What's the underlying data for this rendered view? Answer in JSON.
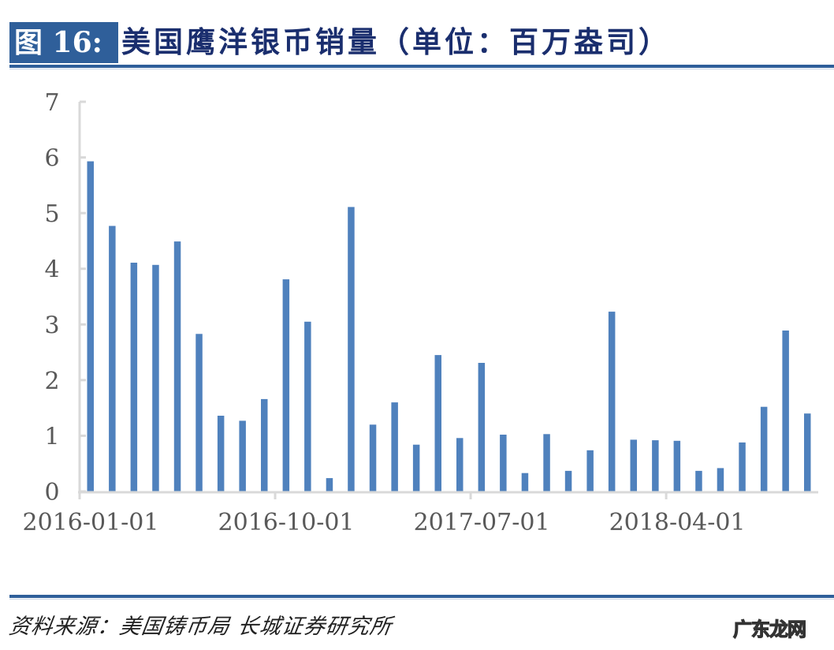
{
  "header": {
    "figure_label": "图 16:",
    "title": "美国鹰洋银币销量（单位：百万盎司）"
  },
  "footer": {
    "source": "资料来源：美国铸币局 长城证券研究所",
    "watermark": "广东龙网"
  },
  "colors": {
    "bar": "#4f81bd",
    "badge": "#2f5f9a",
    "title_text": "#1a2e6e",
    "axis": "#d9d9d9",
    "tick_label": "#595959"
  },
  "chart_data": {
    "type": "bar",
    "title": "美国鹰洋银币销量（单位：百万盎司）",
    "xlabel": "",
    "ylabel": "百万盎司",
    "ylim": [
      0,
      7
    ],
    "yticks": [
      0,
      1,
      2,
      3,
      4,
      5,
      6,
      7
    ],
    "grid": false,
    "legend": null,
    "x_tick_labels": [
      "2016-01-01",
      "2016-10-01",
      "2017-07-01",
      "2018-04-01"
    ],
    "categories": [
      "2016-01",
      "2016-02",
      "2016-03",
      "2016-04",
      "2016-05",
      "2016-06",
      "2016-07",
      "2016-08",
      "2016-09",
      "2016-10",
      "2016-11",
      "2016-12",
      "2017-01",
      "2017-02",
      "2017-03",
      "2017-04",
      "2017-05",
      "2017-06",
      "2017-07",
      "2017-08",
      "2017-09",
      "2017-10",
      "2017-11",
      "2017-12",
      "2018-01",
      "2018-02",
      "2018-03",
      "2018-04",
      "2018-05",
      "2018-06",
      "2018-07",
      "2018-08",
      "2018-09",
      "2018-10"
    ],
    "values": [
      5.93,
      4.77,
      4.11,
      4.07,
      4.49,
      2.83,
      1.36,
      1.27,
      1.66,
      3.81,
      3.05,
      0.24,
      5.11,
      1.2,
      1.6,
      0.84,
      2.45,
      0.96,
      2.31,
      1.02,
      0.33,
      1.03,
      0.37,
      0.74,
      3.23,
      0.93,
      0.92,
      0.91,
      0.37,
      0.42,
      0.88,
      1.52,
      2.89,
      1.4
    ]
  }
}
